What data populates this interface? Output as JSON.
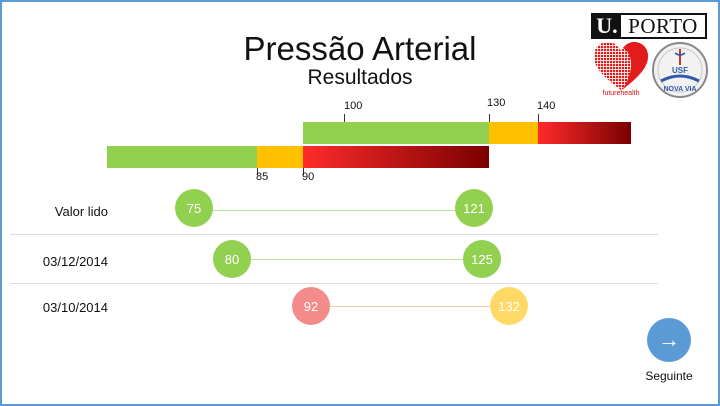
{
  "header": {
    "title": "Pressão Arterial",
    "subtitle": "Resultados"
  },
  "logos": {
    "uporto_u": "U.",
    "uporto_text": "PORTO",
    "futurehealth": "futurehealth",
    "usf_top": "USF",
    "usf_bottom": "NOVA VIA"
  },
  "scale": {
    "systolic_ticks": [
      "100",
      "130",
      "140"
    ],
    "diastolic_ticks": [
      "85",
      "90"
    ],
    "colors": {
      "green": "#92d050",
      "amber": "#ffc000",
      "red_start": "#ff2b2b",
      "red_end": "#7a0000"
    }
  },
  "readings": [
    {
      "label": "Valor lido",
      "diastolic": "75",
      "systolic": "121",
      "dia_color": "#92d050",
      "sys_color": "#92d050",
      "line_color": "#b9e39a"
    },
    {
      "label": "03/12/2014",
      "diastolic": "80",
      "systolic": "125",
      "dia_color": "#92d050",
      "sys_color": "#92d050",
      "line_color": "#b9e39a"
    },
    {
      "label": "03/10/2014",
      "diastolic": "92",
      "systolic": "132",
      "dia_color": "#f48b8b",
      "sys_color": "#ffd966",
      "line_color": "#f9c89b"
    }
  ],
  "navigation": {
    "next_label": "Seguinte",
    "next_icon": "arrow-right-icon"
  }
}
